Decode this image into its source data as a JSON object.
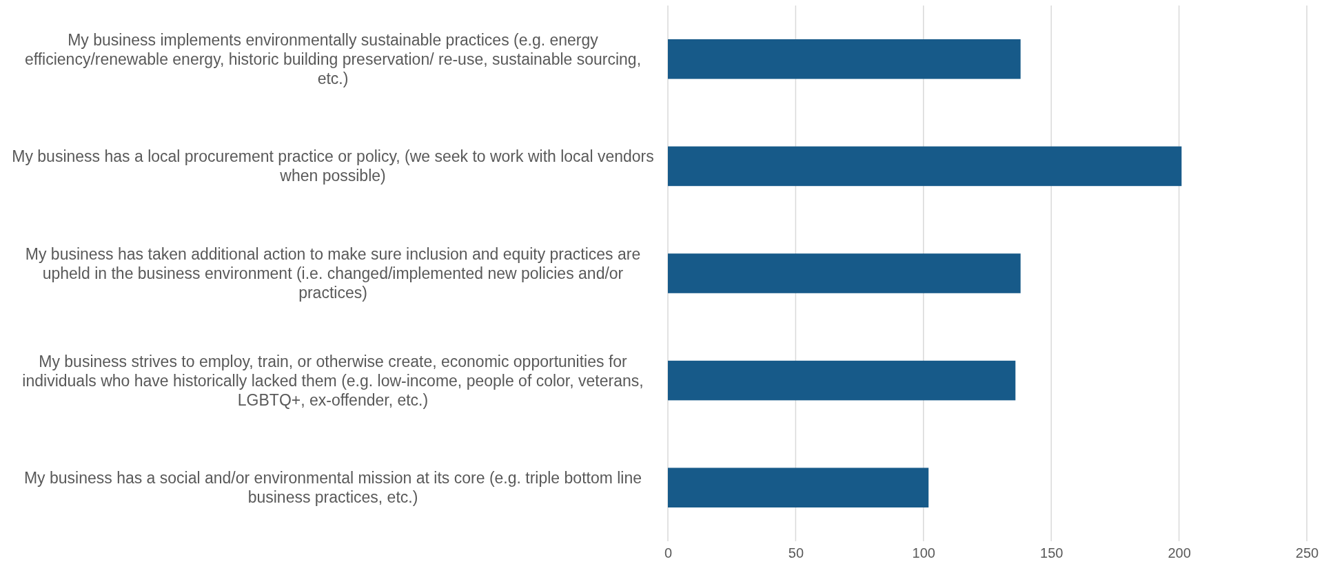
{
  "chart_data": {
    "type": "bar",
    "orientation": "horizontal",
    "categories": [
      "My business implements environmentally sustainable practices (e.g. energy efficiency/renewable energy, historic building preservation/ re-use, sustainable sourcing, etc.)",
      "My business has a local procurement practice or policy, (we seek to work with local vendors when possible)",
      "My business has taken additional action to make sure inclusion and equity practices are upheld in the business environment (i.e. changed/implemented new policies and/or practices)",
      "My business strives to employ, train, or otherwise create, economic opportunities for individuals who have historically lacked them (e.g. low-income, people of color, veterans, LGBTQ+, ex-offender, etc.)",
      "My business has a social and/or environmental mission at its core (e.g. triple bottom line business practices, etc.)"
    ],
    "values": [
      138,
      201,
      138,
      136,
      102
    ],
    "color": "#175a89",
    "xlim": [
      0,
      250
    ],
    "xticks": [
      0,
      50,
      100,
      150,
      200,
      250
    ],
    "grid": "x"
  }
}
